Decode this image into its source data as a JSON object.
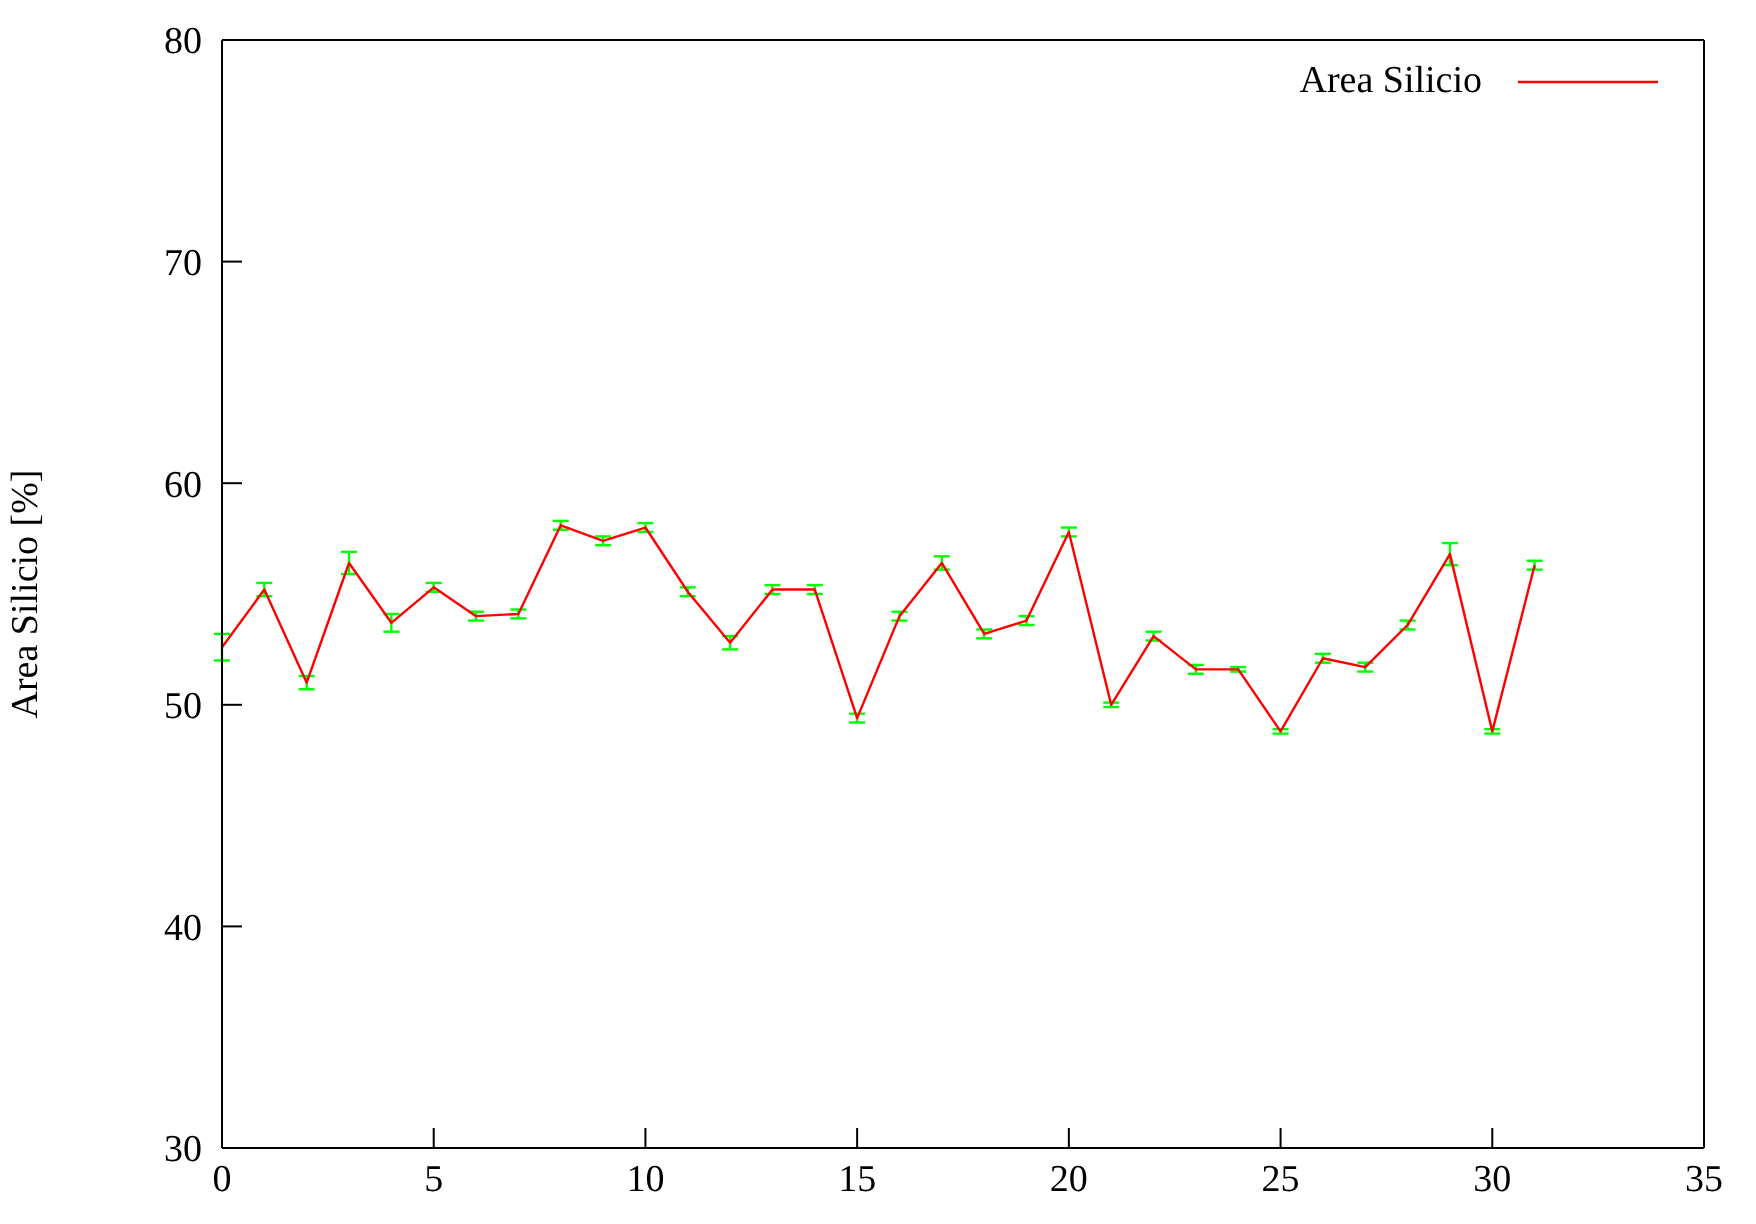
{
  "chart_data": {
    "type": "line",
    "ylabel": "Area Silicio [%]",
    "x": [
      0,
      1,
      2,
      3,
      4,
      5,
      6,
      7,
      8,
      9,
      10,
      11,
      12,
      13,
      14,
      15,
      16,
      17,
      18,
      19,
      20,
      21,
      22,
      23,
      24,
      25,
      26,
      27,
      28,
      29,
      30,
      31
    ],
    "series": [
      {
        "name": "Area Silicio",
        "color": "#ff0000",
        "values": [
          52.6,
          55.2,
          51.0,
          56.4,
          53.7,
          55.3,
          54.0,
          54.1,
          58.1,
          57.4,
          58.0,
          55.1,
          52.8,
          55.2,
          55.2,
          49.4,
          54.0,
          56.4,
          53.2,
          53.8,
          57.8,
          50.0,
          53.1,
          51.6,
          51.6,
          48.8,
          52.1,
          51.7,
          53.6,
          56.8,
          48.8,
          56.3
        ],
        "errors": [
          0.6,
          0.3,
          0.3,
          0.5,
          0.4,
          0.2,
          0.2,
          0.2,
          0.2,
          0.2,
          0.2,
          0.2,
          0.3,
          0.2,
          0.2,
          0.2,
          0.2,
          0.3,
          0.2,
          0.2,
          0.2,
          0.1,
          0.2,
          0.2,
          0.1,
          0.1,
          0.2,
          0.2,
          0.2,
          0.5,
          0.1,
          0.2
        ]
      }
    ],
    "xlim": [
      0,
      35
    ],
    "xticks": [
      0,
      5,
      10,
      15,
      20,
      25,
      30,
      35
    ],
    "ylim": [
      30,
      80
    ],
    "yticks": [
      30,
      40,
      50,
      60,
      70,
      80
    ],
    "legend": "top right",
    "marker": "none",
    "line_style": "solid"
  }
}
